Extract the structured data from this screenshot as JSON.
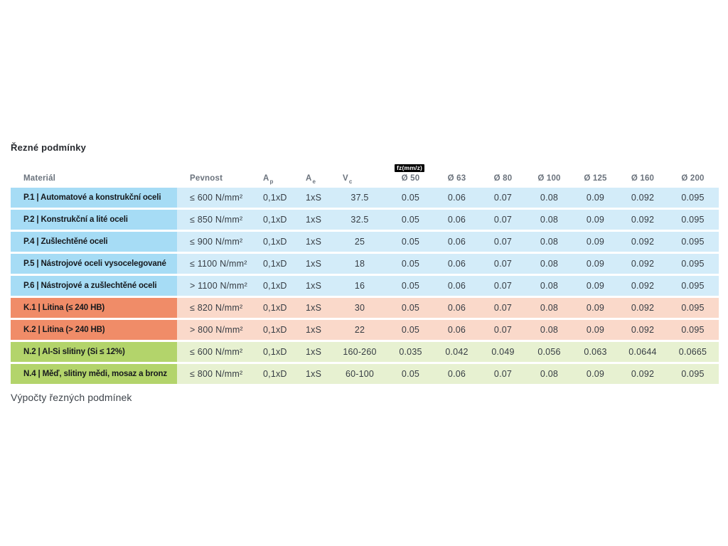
{
  "page": {
    "title": "Řezné podmínky",
    "footer": "Výpočty řezných podmínek"
  },
  "table": {
    "fz_badge": "fz(mm/z)",
    "headers": {
      "material": "Materiál",
      "pevnost": "Pevnost",
      "ap_base": "A",
      "ap_sub": "p",
      "ae_base": "A",
      "ae_sub": "e",
      "vc_base": "V",
      "vc_sub": "c",
      "diameters": [
        "Ø 50",
        "Ø 63",
        "Ø 80",
        "Ø 100",
        "Ø 125",
        "Ø 160",
        "Ø 200"
      ]
    },
    "colors": {
      "steel_dark": "#a6dcf5",
      "steel_light": "#d3ecf9",
      "cast_dark": "#f08c68",
      "cast_light": "#fad9ca",
      "nonferrous_dark": "#b3d46b",
      "nonferrous_light": "#e7f1d1",
      "badge_bg": "#000000",
      "badge_text": "#ffffff"
    },
    "rows": [
      {
        "group": "steel",
        "name": "P.1 | Automatové a konstrukční oceli",
        "pevnost": "≤ 600 N/mm²",
        "ap": "0,1xD",
        "ae": "1xS",
        "vc": "37.5",
        "fz": [
          "0.05",
          "0.06",
          "0.07",
          "0.08",
          "0.09",
          "0.092",
          "0.095"
        ]
      },
      {
        "group": "steel",
        "name": "P.2 | Konstrukční a lité oceli",
        "pevnost": "≤ 850 N/mm²",
        "ap": "0,1xD",
        "ae": "1xS",
        "vc": "32.5",
        "fz": [
          "0.05",
          "0.06",
          "0.07",
          "0.08",
          "0.09",
          "0.092",
          "0.095"
        ]
      },
      {
        "group": "steel",
        "name": "P.4 | Zušlechtěné oceli",
        "pevnost": "≤ 900 N/mm²",
        "ap": "0,1xD",
        "ae": "1xS",
        "vc": "25",
        "fz": [
          "0.05",
          "0.06",
          "0.07",
          "0.08",
          "0.09",
          "0.092",
          "0.095"
        ]
      },
      {
        "group": "steel",
        "name": "P.5 | Nástrojové oceli vysocelegované",
        "pevnost": "≤ 1100 N/mm²",
        "ap": "0,1xD",
        "ae": "1xS",
        "vc": "18",
        "fz": [
          "0.05",
          "0.06",
          "0.07",
          "0.08",
          "0.09",
          "0.092",
          "0.095"
        ]
      },
      {
        "group": "steel",
        "name": "P.6 | Nástrojové a zušlechtěné oceli",
        "pevnost": "> 1100 N/mm²",
        "ap": "0,1xD",
        "ae": "1xS",
        "vc": "16",
        "fz": [
          "0.05",
          "0.06",
          "0.07",
          "0.08",
          "0.09",
          "0.092",
          "0.095"
        ]
      },
      {
        "group": "cast",
        "name": "K.1 | Litina (≤ 240 HB)",
        "pevnost": "≤ 820 N/mm²",
        "ap": "0,1xD",
        "ae": "1xS",
        "vc": "30",
        "fz": [
          "0.05",
          "0.06",
          "0.07",
          "0.08",
          "0.09",
          "0.092",
          "0.095"
        ]
      },
      {
        "group": "cast",
        "name": "K.2 | Litina (> 240 HB)",
        "pevnost": "> 800 N/mm²",
        "ap": "0,1xD",
        "ae": "1xS",
        "vc": "22",
        "fz": [
          "0.05",
          "0.06",
          "0.07",
          "0.08",
          "0.09",
          "0.092",
          "0.095"
        ]
      },
      {
        "group": "nonferrous",
        "name": "N.2 | Al-Si slitiny (Si ≤ 12%)",
        "pevnost": "≤ 600 N/mm²",
        "ap": "0,1xD",
        "ae": "1xS",
        "vc": "160-260",
        "fz": [
          "0.035",
          "0.042",
          "0.049",
          "0.056",
          "0.063",
          "0.0644",
          "0.0665"
        ]
      },
      {
        "group": "nonferrous",
        "name": "N.4 | Měď, slitiny mědi, mosaz a bronz",
        "pevnost": "≤ 800 N/mm²",
        "ap": "0,1xD",
        "ae": "1xS",
        "vc": "60-100",
        "fz": [
          "0.05",
          "0.06",
          "0.07",
          "0.08",
          "0.09",
          "0.092",
          "0.095"
        ]
      }
    ]
  }
}
